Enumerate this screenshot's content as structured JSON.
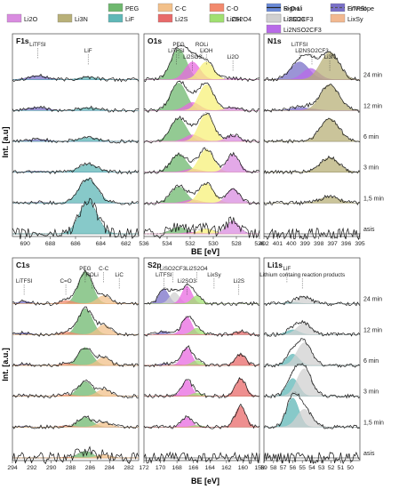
{
  "legend": [
    {
      "label": "Li2O",
      "color": "#d98ce0",
      "kind": "box"
    },
    {
      "label": "Li3N",
      "color": "#b8b078",
      "kind": "box"
    },
    {
      "label": "PEG",
      "color": "#6fb86f",
      "kind": "box"
    },
    {
      "label": "LiF",
      "color": "#5fb7b7",
      "kind": "box"
    },
    {
      "label": "C-C",
      "color": "#f2c08a",
      "kind": "box"
    },
    {
      "label": "Li2S",
      "color": "#e86a6a",
      "kind": "box"
    },
    {
      "label": "C-O",
      "color": "#f28a6e",
      "kind": "box"
    },
    {
      "label": "LiOH",
      "color": "#f7f07a",
      "kind": "box"
    },
    {
      "label": "R-O-Li",
      "color": "#6a8ad8",
      "kind": "box"
    },
    {
      "label": "Li2SO3",
      "color": "#e86ae0",
      "kind": "box"
    },
    {
      "label": "LiTFSI",
      "color": "#7a70c8",
      "kind": "box"
    },
    {
      "label": "Li2S2O4",
      "color": "#a0e070",
      "kind": "box"
    },
    {
      "label": "Signal",
      "color": "#222222",
      "kind": "line"
    },
    {
      "label": "LiSO2CF3",
      "color": "#d0d0d0",
      "kind": "box"
    },
    {
      "label": "Envelope",
      "color": "#555555",
      "kind": "dash"
    },
    {
      "label": "LixSy",
      "color": "#f2b890",
      "kind": "box"
    },
    {
      "label": "Li2NSO2CF3",
      "color": "#b86ae8",
      "kind": "box"
    }
  ],
  "y_axis_label": "Int. [a.u]",
  "y_axis_label_bottom": "Int. [a.u.]",
  "x_axis_label": "BE [eV]",
  "time_labels": [
    "24 min",
    "12 min",
    "6 min",
    "3 min",
    "1,5 min",
    "asis"
  ],
  "chart_data": [
    {
      "type": "area",
      "title": "F1s",
      "xlim": [
        691,
        681
      ],
      "xticks": [
        690,
        688,
        686,
        684,
        682
      ],
      "annotations": [
        {
          "text": "LiTFSI",
          "x": 689.0
        },
        {
          "text": "LiF",
          "x": 685.0
        }
      ],
      "components": [
        {
          "name": "LiTFSI",
          "center": 689.0,
          "fwhm": 1.8
        },
        {
          "name": "LiF",
          "center": 685.0,
          "fwhm": 1.7
        }
      ],
      "spectra": [
        {
          "time": "24 min",
          "amplitudes": [
            0.12,
            0.08
          ]
        },
        {
          "time": "12 min",
          "amplitudes": [
            0.1,
            0.09
          ]
        },
        {
          "time": "6 min",
          "amplitudes": [
            0.06,
            0.12
          ]
        },
        {
          "time": "3 min",
          "amplitudes": [
            0.03,
            0.25
          ]
        },
        {
          "time": "1,5 min",
          "amplitudes": [
            0.02,
            0.75
          ]
        },
        {
          "time": "asis",
          "amplitudes": [
            0.0,
            1.0
          ]
        }
      ]
    },
    {
      "type": "area",
      "title": "O1s",
      "xlim": [
        536,
        526
      ],
      "xticks": [
        536,
        534,
        532,
        530,
        528,
        526
      ],
      "annotations": [
        {
          "text": "PEG",
          "x": 533.0
        },
        {
          "text": "LiTFSI",
          "x": 533.2
        },
        {
          "text": "Li2SO3",
          "x": 531.8
        },
        {
          "text": "ROLi",
          "x": 531.0
        },
        {
          "text": "LiOH",
          "x": 530.6
        },
        {
          "text": "Li2O",
          "x": 528.3
        }
      ],
      "components": [
        {
          "name": "PEG",
          "center": 533.0,
          "fwhm": 1.6
        },
        {
          "name": "Li2SO3",
          "center": 531.8,
          "fwhm": 1.5
        },
        {
          "name": "LiOH",
          "center": 530.6,
          "fwhm": 1.5
        },
        {
          "name": "Li2O",
          "center": 528.3,
          "fwhm": 1.3
        }
      ],
      "spectra": [
        {
          "time": "24 min",
          "amplitudes": [
            0.95,
            0.55,
            0.55,
            0.05
          ]
        },
        {
          "time": "12 min",
          "amplitudes": [
            0.85,
            0.25,
            0.8,
            0.1
          ]
        },
        {
          "time": "6 min",
          "amplitudes": [
            0.7,
            0.2,
            0.85,
            0.2
          ]
        },
        {
          "time": "3 min",
          "amplitudes": [
            0.55,
            0.1,
            0.7,
            0.55
          ]
        },
        {
          "time": "1,5 min",
          "amplitudes": [
            0.5,
            0.1,
            0.6,
            0.45
          ]
        },
        {
          "time": "asis",
          "amplitudes": [
            0.2,
            0.05,
            0.15,
            0.4
          ]
        }
      ]
    },
    {
      "type": "area",
      "title": "N1s",
      "xlim": [
        402,
        395
      ],
      "xticks": [
        402,
        401,
        400,
        399,
        398,
        397,
        396,
        395
      ],
      "annotations": [
        {
          "text": "LiTFSI",
          "x": 399.4
        },
        {
          "text": "Li2NSO2CF3",
          "x": 398.5
        },
        {
          "text": "Li3N",
          "x": 397.2
        }
      ],
      "components": [
        {
          "name": "LiTFSI",
          "center": 399.4,
          "fwhm": 1.6
        },
        {
          "name": "Li2NSO2CF3",
          "center": 398.6,
          "fwhm": 1.4
        },
        {
          "name": "Li3N",
          "center": 397.2,
          "fwhm": 1.6
        }
      ],
      "spectra": [
        {
          "time": "24 min",
          "amplitudes": [
            0.55,
            0.35,
            0.85
          ]
        },
        {
          "time": "12 min",
          "amplitudes": [
            0.1,
            0.05,
            0.8
          ]
        },
        {
          "time": "6 min",
          "amplitudes": [
            0.0,
            0.0,
            0.7
          ]
        },
        {
          "time": "3 min",
          "amplitudes": [
            0.0,
            0.0,
            0.45
          ]
        },
        {
          "time": "1,5 min",
          "amplitudes": [
            0.0,
            0.0,
            0.2
          ]
        },
        {
          "time": "asis",
          "amplitudes": [
            0.0,
            0.0,
            0.0
          ]
        }
      ]
    },
    {
      "type": "area",
      "title": "C1s",
      "xlim": [
        294,
        281
      ],
      "xticks": [
        294,
        292,
        290,
        288,
        286,
        284,
        282
      ],
      "annotations": [
        {
          "text": "PEG",
          "x": 286.5
        },
        {
          "text": "ROLi",
          "x": 285.8
        },
        {
          "text": "C=O",
          "x": 288.5
        },
        {
          "text": "C-C",
          "x": 284.6
        },
        {
          "text": "LiC",
          "x": 283.0
        },
        {
          "text": "LiTFSI",
          "x": 292.8
        }
      ],
      "components": [
        {
          "name": "LiTFSI",
          "center": 292.8,
          "fwhm": 1.4
        },
        {
          "name": "PEG",
          "center": 286.5,
          "fwhm": 1.7
        },
        {
          "name": "C-O",
          "center": 288.4,
          "fwhm": 1.6
        },
        {
          "name": "C-C",
          "center": 284.6,
          "fwhm": 1.6
        }
      ],
      "spectra": [
        {
          "time": "24 min",
          "amplitudes": [
            0.08,
            1.0,
            0.1,
            0.25
          ]
        },
        {
          "time": "12 min",
          "amplitudes": [
            0.06,
            0.8,
            0.08,
            0.3
          ]
        },
        {
          "time": "6 min",
          "amplitudes": [
            0.04,
            0.55,
            0.06,
            0.25
          ]
        },
        {
          "time": "3 min",
          "amplitudes": [
            0.02,
            0.45,
            0.05,
            0.22
          ]
        },
        {
          "time": "1,5 min",
          "amplitudes": [
            0.02,
            0.3,
            0.04,
            0.15
          ]
        },
        {
          "time": "asis",
          "amplitudes": [
            0.0,
            0.2,
            0.02,
            0.1
          ]
        }
      ]
    },
    {
      "type": "area",
      "title": "S2p",
      "xlim": [
        172,
        158
      ],
      "xticks": [
        172,
        170,
        168,
        166,
        164,
        162,
        160,
        158
      ],
      "annotations": [
        {
          "text": "LiSO2CF3",
          "x": 168.5
        },
        {
          "text": "LiTFSI",
          "x": 169.6
        },
        {
          "text": "Li2SO3",
          "x": 166.8
        },
        {
          "text": "Li2S2O4",
          "x": 165.6
        },
        {
          "text": "LixSy",
          "x": 163.5
        },
        {
          "text": "Li2S",
          "x": 160.5
        }
      ],
      "components": [
        {
          "name": "LiTFSI",
          "center": 169.6,
          "fwhm": 1.4
        },
        {
          "name": "LiSO2CF3",
          "center": 168.3,
          "fwhm": 1.4
        },
        {
          "name": "Li2SO3",
          "center": 166.8,
          "fwhm": 1.4
        },
        {
          "name": "Li2S2O4",
          "center": 165.6,
          "fwhm": 1.4
        },
        {
          "name": "Li2S",
          "center": 160.3,
          "fwhm": 1.5
        }
      ],
      "spectra": [
        {
          "time": "24 min",
          "amplitudes": [
            0.45,
            0.35,
            0.55,
            0.25,
            0.0
          ]
        },
        {
          "time": "12 min",
          "amplitudes": [
            0.1,
            0.05,
            0.55,
            0.2,
            0.1
          ]
        },
        {
          "time": "6 min",
          "amplitudes": [
            0.05,
            0.05,
            0.55,
            0.15,
            0.35
          ]
        },
        {
          "time": "3 min",
          "amplitudes": [
            0.0,
            0.05,
            0.5,
            0.1,
            0.55
          ]
        },
        {
          "time": "1,5 min",
          "amplitudes": [
            0.0,
            0.0,
            0.3,
            0.05,
            0.65
          ]
        },
        {
          "time": "asis",
          "amplitudes": [
            0.0,
            0.0,
            0.0,
            0.0,
            0.0
          ]
        }
      ]
    },
    {
      "type": "area",
      "title": "Li1s",
      "xlim": [
        59,
        49
      ],
      "xticks": [
        59,
        58,
        57,
        56,
        55,
        54,
        53,
        52,
        51,
        50
      ],
      "annotations": [
        {
          "text": "LiF",
          "x": 56.6
        },
        {
          "text": "Lithium containg reaction products",
          "x": 55.0
        }
      ],
      "components": [
        {
          "name": "LiF",
          "center": 56.0,
          "fwhm": 1.5
        },
        {
          "name": "LiSO2CF3",
          "center": 54.8,
          "fwhm": 1.8
        }
      ],
      "spectra": [
        {
          "time": "24 min",
          "amplitudes": [
            0.05,
            0.2
          ]
        },
        {
          "time": "12 min",
          "amplitudes": [
            0.15,
            0.35
          ]
        },
        {
          "time": "6 min",
          "amplitudes": [
            0.35,
            0.7
          ]
        },
        {
          "time": "3 min",
          "amplitudes": [
            0.55,
            0.85
          ]
        },
        {
          "time": "1,5 min",
          "amplitudes": [
            0.9,
            0.55
          ]
        },
        {
          "time": "asis",
          "amplitudes": [
            0.0,
            0.0
          ]
        }
      ]
    }
  ]
}
